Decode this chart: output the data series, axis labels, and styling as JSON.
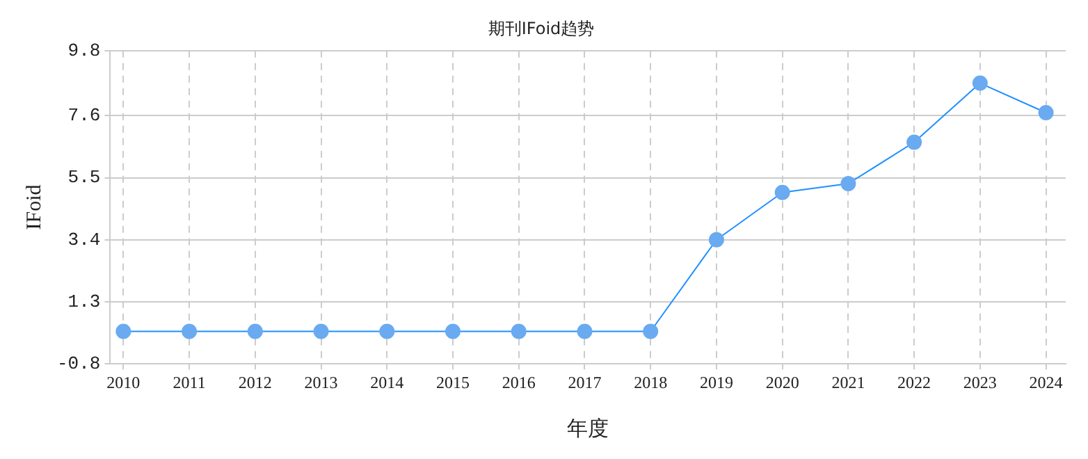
{
  "chart_data": {
    "type": "line",
    "title": "期刊IFoid趋势",
    "xlabel": "年度",
    "ylabel": "IFoid",
    "x": [
      2010,
      2011,
      2012,
      2013,
      2014,
      2015,
      2016,
      2017,
      2018,
      2019,
      2020,
      2021,
      2022,
      2023,
      2024
    ],
    "series": [
      {
        "color": "#1e90ff",
        "values": [
          0.3,
          0.3,
          0.3,
          0.3,
          0.3,
          0.3,
          0.3,
          0.3,
          0.3,
          3.4,
          5.0,
          5.3,
          6.7,
          8.7,
          7.7
        ]
      }
    ],
    "xlim": [
      2009.8,
      2024.3
    ],
    "xticks": [
      2010,
      2011,
      2012,
      2013,
      2014,
      2015,
      2016,
      2017,
      2018,
      2019,
      2020,
      2021,
      2022,
      2023,
      2024
    ],
    "ylim": [
      -0.8,
      9.8
    ],
    "yticks": [
      -0.8,
      1.3,
      3.4,
      5.5,
      7.6,
      9.8
    ],
    "grid": true,
    "marker": "circle",
    "legend": false
  }
}
